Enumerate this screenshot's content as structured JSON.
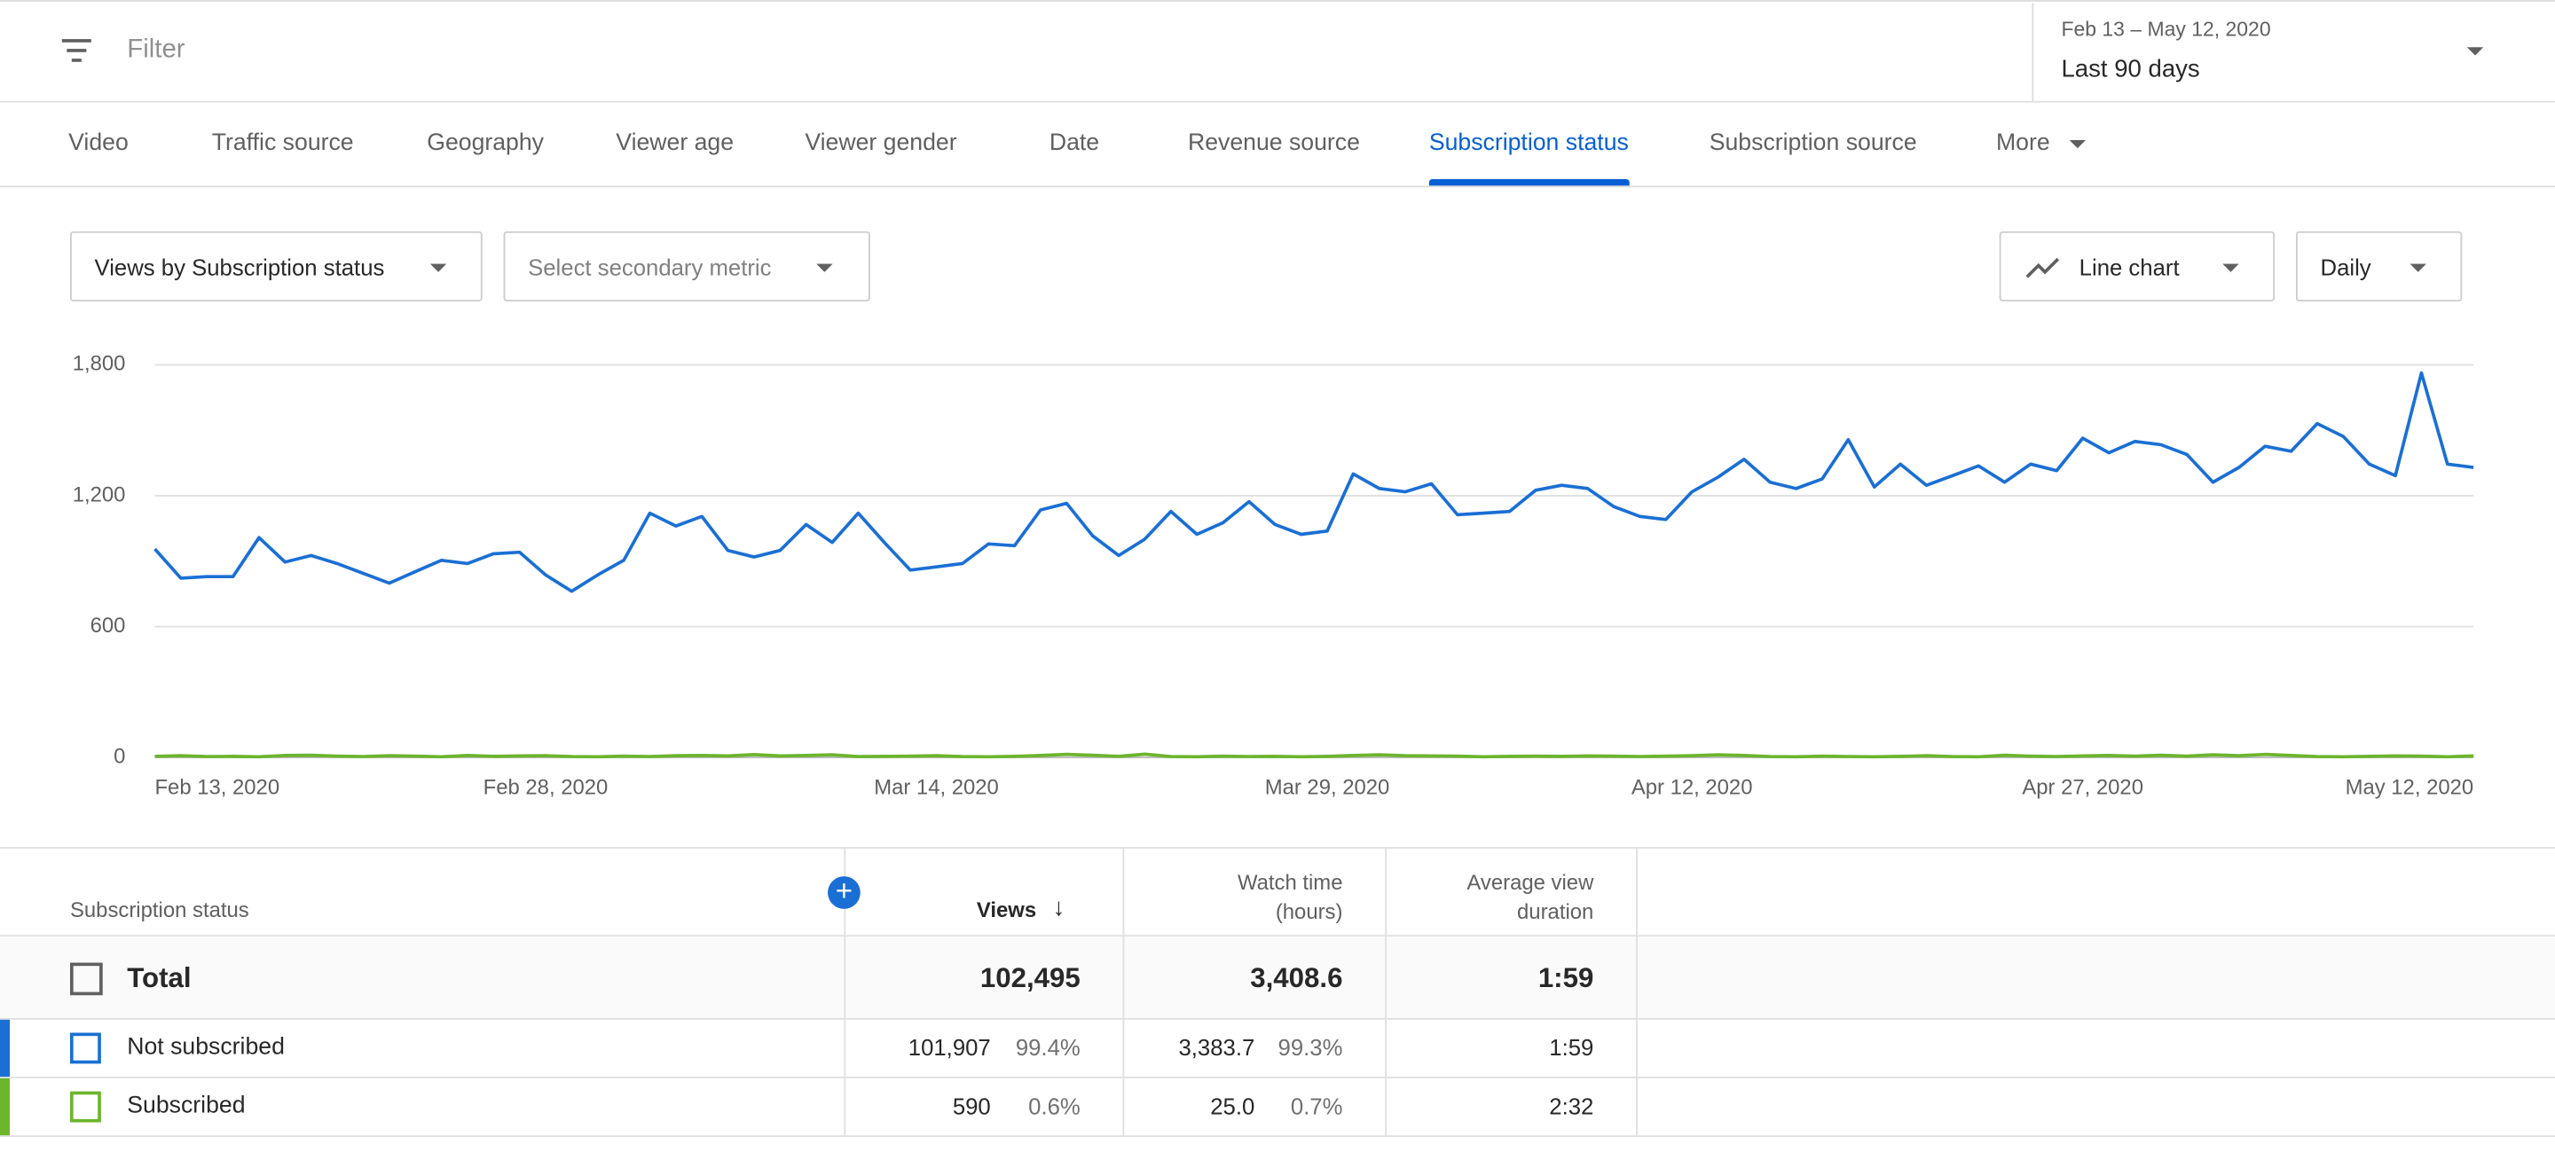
{
  "filter": {
    "placeholder": "Filter"
  },
  "date_range": {
    "range": "Feb 13 – May 12, 2020",
    "label": "Last 90 days"
  },
  "tabs": {
    "items": [
      "Video",
      "Traffic source",
      "Geography",
      "Viewer age",
      "Viewer gender",
      "Date",
      "Revenue source",
      "Subscription status",
      "Subscription source",
      "More"
    ],
    "active": 7
  },
  "controls": {
    "metric": "Views by Subscription status",
    "secondary": "Select secondary metric",
    "chart_type": "Line chart",
    "interval": "Daily"
  },
  "chart_data": {
    "type": "line",
    "x": [
      "Feb 13, 2020",
      null,
      null,
      null,
      null,
      null,
      null,
      null,
      null,
      null,
      null,
      null,
      null,
      null,
      null,
      "Feb 28, 2020",
      null,
      null,
      null,
      null,
      null,
      null,
      null,
      null,
      null,
      null,
      null,
      null,
      null,
      null,
      "Mar 14, 2020",
      null,
      null,
      null,
      null,
      null,
      null,
      null,
      null,
      null,
      null,
      null,
      null,
      null,
      null,
      "Mar 29, 2020",
      null,
      null,
      null,
      null,
      null,
      null,
      null,
      null,
      null,
      null,
      null,
      null,
      null,
      "Apr 12, 2020",
      null,
      null,
      null,
      null,
      null,
      null,
      null,
      null,
      null,
      null,
      null,
      null,
      null,
      null,
      "Apr 27, 2020",
      null,
      null,
      null,
      null,
      null,
      null,
      null,
      null,
      null,
      null,
      null,
      null,
      null,
      null,
      "May 12, 2020"
    ],
    "series": [
      {
        "name": "Not subscribed",
        "color": "#1a6fd4",
        "values": [
          956,
          822,
          829,
          829,
          1008,
          896,
          926,
          889,
          844,
          799,
          852,
          904,
          889,
          934,
          941,
          837,
          762,
          837,
          904,
          1120,
          1061,
          1105,
          949,
          919,
          949,
          1068,
          986,
          1120,
          986,
          859,
          874,
          889,
          979,
          971,
          1135,
          1165,
          1016,
          926,
          1001,
          1128,
          1023,
          1076,
          1173,
          1068,
          1023,
          1038,
          1300,
          1233,
          1218,
          1255,
          1113,
          1120,
          1128,
          1225,
          1248,
          1233,
          1150,
          1105,
          1091,
          1218,
          1285,
          1367,
          1262,
          1233,
          1277,
          1457,
          1240,
          1345,
          1248,
          1292,
          1337,
          1262,
          1345,
          1315,
          1464,
          1397,
          1449,
          1434,
          1389,
          1262,
          1330,
          1427,
          1404,
          1531,
          1472,
          1345,
          1292,
          1763,
          1345,
          1330
        ]
      },
      {
        "name": "Subscribed",
        "color": "#6cb52d",
        "values": [
          5,
          8,
          4,
          5,
          3,
          9,
          10,
          6,
          4,
          8,
          6,
          3,
          9,
          5,
          7,
          8,
          4,
          3,
          6,
          4,
          8,
          9,
          7,
          13,
          7,
          9,
          12,
          4,
          5,
          6,
          8,
          4,
          3,
          5,
          9,
          14,
          10,
          5,
          15,
          4,
          3,
          6,
          4,
          5,
          3,
          5,
          9,
          12,
          8,
          7,
          6,
          3,
          5,
          6,
          5,
          7,
          6,
          4,
          6,
          8,
          12,
          9,
          4,
          3,
          6,
          4,
          3,
          5,
          8,
          4,
          3,
          10,
          6,
          4,
          7,
          9,
          6,
          10,
          6,
          12,
          8,
          14,
          9,
          4,
          3,
          5,
          7,
          6,
          3,
          7
        ]
      }
    ],
    "ylim": [
      0,
      1800
    ],
    "yticks": [
      0,
      600,
      {
        "value": 1200,
        "label": "1,200"
      },
      {
        "value": 1800,
        "label": "1,800"
      }
    ],
    "grid": true
  },
  "table": {
    "columns": [
      "Subscription status",
      "Views",
      "Watch time (hours)",
      "Average view duration"
    ],
    "rows": [
      [
        "Total",
        "102,495",
        "3,408.6",
        "1:59"
      ],
      [
        "Not subscribed",
        "101,907",
        "99.4%",
        "3,383.7",
        "99.3%",
        "1:59"
      ],
      [
        "Subscribed",
        "590",
        "0.6%",
        "25.0",
        "0.7%",
        "2:32"
      ]
    ]
  }
}
